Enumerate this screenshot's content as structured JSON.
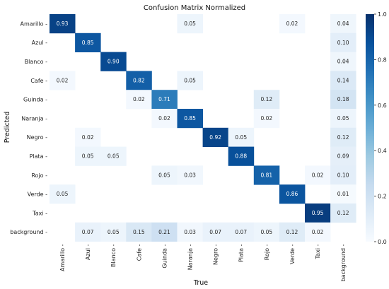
{
  "chart_data": {
    "type": "heatmap",
    "title": "Confusion Matrix Normalized",
    "xlabel": "True",
    "ylabel": "Predicted",
    "x_categories": [
      "Amarillo",
      "Azul",
      "Blanco",
      "Cafe",
      "Guinda",
      "Naranja",
      "Negro",
      "Plata",
      "Rojo",
      "Verde",
      "Taxi",
      "background"
    ],
    "y_categories": [
      "Amarillo",
      "Azul",
      "Blanco",
      "Cafe",
      "Guinda",
      "Naranja",
      "Negro",
      "Plata",
      "Rojo",
      "Verde",
      "Taxi",
      "background"
    ],
    "values": [
      [
        0.93,
        null,
        null,
        null,
        null,
        0.05,
        null,
        null,
        null,
        0.02,
        null,
        0.04
      ],
      [
        null,
        0.85,
        null,
        null,
        null,
        null,
        null,
        null,
        null,
        null,
        null,
        0.1
      ],
      [
        null,
        null,
        0.9,
        null,
        null,
        null,
        null,
        null,
        null,
        null,
        null,
        0.04
      ],
      [
        0.02,
        null,
        null,
        0.82,
        null,
        0.05,
        null,
        null,
        null,
        null,
        null,
        0.14
      ],
      [
        null,
        null,
        null,
        0.02,
        0.71,
        null,
        null,
        null,
        0.12,
        null,
        null,
        0.18
      ],
      [
        null,
        null,
        null,
        null,
        0.02,
        0.85,
        null,
        null,
        0.02,
        null,
        null,
        0.05
      ],
      [
        null,
        0.02,
        null,
        null,
        null,
        null,
        0.92,
        0.05,
        null,
        null,
        null,
        0.12
      ],
      [
        null,
        0.05,
        0.05,
        null,
        null,
        null,
        null,
        0.88,
        null,
        null,
        null,
        0.09
      ],
      [
        null,
        null,
        null,
        null,
        0.05,
        0.03,
        null,
        null,
        0.81,
        null,
        0.02,
        0.1
      ],
      [
        0.05,
        null,
        null,
        null,
        null,
        null,
        null,
        null,
        null,
        0.86,
        null,
        0.01
      ],
      [
        null,
        null,
        null,
        null,
        null,
        null,
        null,
        null,
        null,
        null,
        0.95,
        0.12
      ],
      [
        null,
        0.07,
        0.05,
        0.15,
        0.21,
        0.03,
        0.07,
        0.07,
        0.05,
        0.12,
        0.02,
        null
      ]
    ],
    "colorbar": {
      "range": [
        0.0,
        1.0
      ],
      "ticks": [
        "0.0",
        "0.2",
        "0.4",
        "0.6",
        "0.8",
        "1.0"
      ]
    },
    "colormap": "Blues",
    "colors": {
      "low": "#f7fbff",
      "high": "#08306b",
      "text_dark": "#262626",
      "text_light": "#ffffff"
    }
  }
}
